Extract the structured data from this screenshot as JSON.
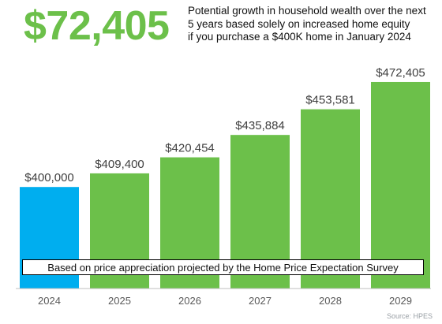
{
  "headline": {
    "value": "$72,405",
    "color": "#6cc04a"
  },
  "subtitle_lines": [
    "Potential growth in household wealth over the next",
    "5 years based solely on increased home equity",
    "if you purchase a $400K home in January 2024"
  ],
  "note": "Based on price appreciation projected by the Home Price Expectation Survey",
  "source": "Source: HPES",
  "colors": {
    "first_bar": "#00aeef",
    "other_bars": "#6cc04a",
    "value_labels": "#404040",
    "year_labels": "#595959",
    "axis": "#bfbfbf"
  },
  "chart_data": {
    "type": "bar",
    "title": "",
    "xlabel": "",
    "ylabel": "",
    "categories": [
      "2024",
      "2025",
      "2026",
      "2027",
      "2028",
      "2029"
    ],
    "values": [
      400000,
      409400,
      420454,
      435884,
      453581,
      472405
    ],
    "value_labels": [
      "$400,000",
      "$409,400",
      "$420,454",
      "$435,884",
      "$453,581",
      "$472,405"
    ],
    "ylim": [
      330000,
      480000
    ],
    "grid": false,
    "legend": "none"
  }
}
